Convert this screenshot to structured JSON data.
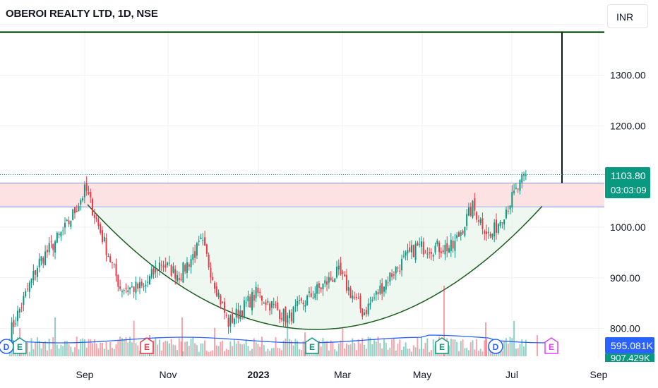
{
  "header": {
    "title": "OBEROI REALTY LTD, 1D, NSE",
    "currency": "INR"
  },
  "price_axis": {
    "ticks": [
      {
        "label": "1300.00",
        "value": 1300
      },
      {
        "label": "1200.00",
        "value": 1200
      },
      {
        "label": "1000.00",
        "value": 1000
      },
      {
        "label": "900.00",
        "value": 900
      },
      {
        "label": "800.00",
        "value": 800
      }
    ]
  },
  "time_axis": {
    "ticks": [
      {
        "label": "Sep",
        "bold": false
      },
      {
        "label": "Nov",
        "bold": false
      },
      {
        "label": "2023",
        "bold": true
      },
      {
        "label": "Mar",
        "bold": false
      },
      {
        "label": "May",
        "bold": false
      },
      {
        "label": "Jul",
        "bold": false
      },
      {
        "label": "Sep",
        "bold": false
      }
    ]
  },
  "last_price": {
    "price": "1103.80",
    "countdown": "03:03:09",
    "color": "#089981"
  },
  "volume_tags": {
    "primary": "595.081K",
    "primary_color": "#2962ff",
    "secondary": "907.429K",
    "secondary_color": "#089981"
  },
  "event_markers": [
    {
      "letter": "D",
      "type": "dividend",
      "color": "#2962ff"
    },
    {
      "letter": "E",
      "type": "earnings",
      "color": "#089981"
    },
    {
      "letter": "E",
      "type": "earnings",
      "color": "#f23645"
    },
    {
      "letter": "E",
      "type": "earnings",
      "color": "#089981"
    },
    {
      "letter": "E",
      "type": "earnings",
      "color": "#089981"
    },
    {
      "letter": "D",
      "type": "dividend",
      "color": "#2962ff"
    },
    {
      "letter": "E",
      "type": "earnings",
      "color": "#e040fb"
    }
  ],
  "colors": {
    "up": "#089981",
    "down": "#f23645",
    "target_line": "#1b5e20",
    "curve": "#1b5e20",
    "zone_fill": "#fde2e4",
    "zone_border": "#7f8ff4",
    "volume_ma": "#2962ff"
  },
  "chart_data": {
    "type": "candlestick",
    "symbol": "OBEROI REALTY LTD",
    "interval": "1D",
    "exchange": "NSE",
    "y_range": [
      770,
      1395
    ],
    "target_level": 1385,
    "resistance_zone": [
      1040,
      1087
    ],
    "last_close": 1103.8,
    "swing_points": [
      {
        "date": "2022-07-15",
        "close": 790
      },
      {
        "date": "2022-08-05",
        "close": 930
      },
      {
        "date": "2022-08-25",
        "close": 1000
      },
      {
        "date": "2022-09-08",
        "close": 1075
      },
      {
        "date": "2022-09-20",
        "close": 980
      },
      {
        "date": "2022-10-03",
        "close": 880
      },
      {
        "date": "2022-10-20",
        "close": 880
      },
      {
        "date": "2022-11-01",
        "close": 930
      },
      {
        "date": "2022-11-15",
        "close": 905
      },
      {
        "date": "2022-12-01",
        "close": 970
      },
      {
        "date": "2022-12-20",
        "close": 810
      },
      {
        "date": "2023-01-10",
        "close": 870
      },
      {
        "date": "2023-02-01",
        "close": 820
      },
      {
        "date": "2023-02-20",
        "close": 870
      },
      {
        "date": "2023-03-10",
        "close": 910
      },
      {
        "date": "2023-03-28",
        "close": 830
      },
      {
        "date": "2023-04-15",
        "close": 900
      },
      {
        "date": "2023-05-05",
        "close": 960
      },
      {
        "date": "2023-05-15",
        "close": 960
      },
      {
        "date": "2023-06-01",
        "close": 960
      },
      {
        "date": "2023-06-15",
        "close": 1040
      },
      {
        "date": "2023-06-28",
        "close": 980
      },
      {
        "date": "2023-07-10",
        "close": 1040
      },
      {
        "date": "2023-07-24",
        "close": 1103.8
      }
    ]
  }
}
